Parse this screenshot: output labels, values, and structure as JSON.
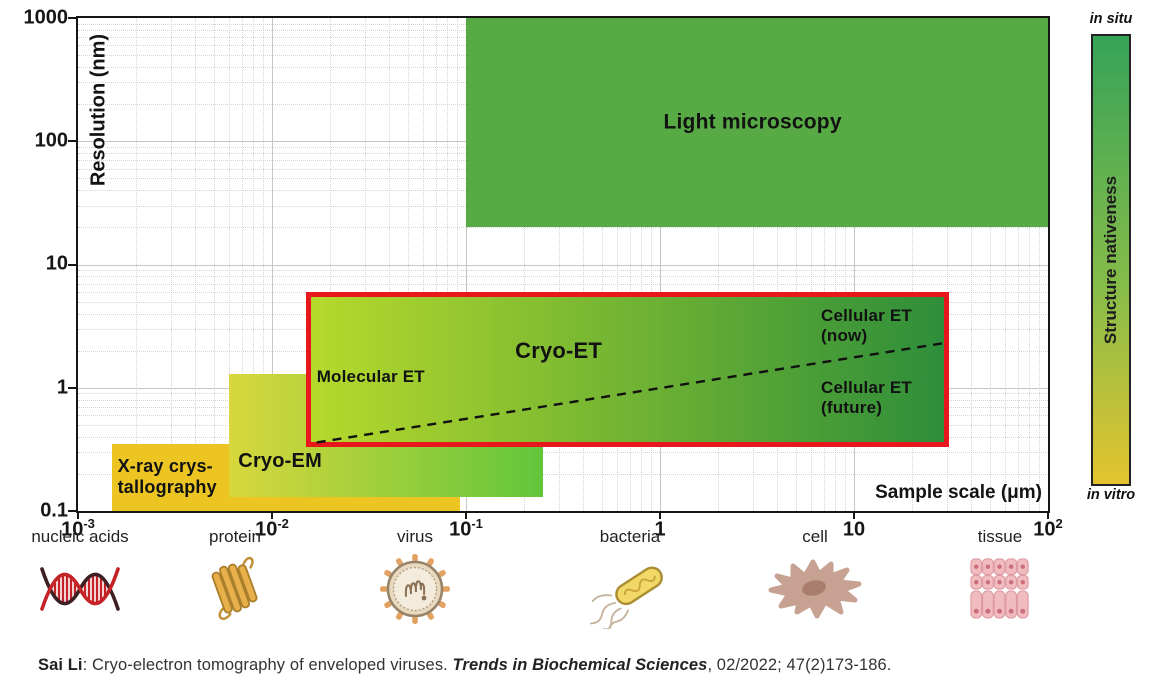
{
  "chart_data": {
    "type": "area",
    "x_scale": "log",
    "y_scale": "log",
    "xlim": [
      0.001,
      100
    ],
    "ylim": [
      0.1,
      1000
    ],
    "xlabel": "Sample scale (μm)",
    "ylabel": "Resolution (nm)",
    "grid": {
      "major": "solid",
      "minor": "dotted",
      "on": true
    },
    "x_ticks": [
      {
        "base": "10",
        "exp": "-3",
        "v": 0.001
      },
      {
        "base": "10",
        "exp": "-2",
        "v": 0.01
      },
      {
        "base": "10",
        "exp": "-1",
        "v": 0.1
      },
      {
        "base": "1",
        "exp": "",
        "v": 1
      },
      {
        "base": "10",
        "exp": "",
        "v": 10
      },
      {
        "base": "10",
        "exp": "2",
        "v": 100
      }
    ],
    "y_ticks": [
      {
        "label": "1000",
        "v": 1000
      },
      {
        "label": "100",
        "v": 100
      },
      {
        "label": "10",
        "v": 10
      },
      {
        "label": "1",
        "v": 1
      },
      {
        "label": "0.1",
        "v": 0.1
      }
    ],
    "regions": [
      {
        "name": "xray-crystallography",
        "x": [
          0.0015,
          0.093
        ],
        "y": [
          0.1,
          0.35
        ],
        "colors": [
          "#ecc523"
        ],
        "labels": [
          {
            "text": "X-ray crys-\ntallography",
            "x": 0.0016,
            "y": 0.19,
            "anchor": "left",
            "size": 18
          }
        ]
      },
      {
        "name": "cryo-em",
        "x": [
          0.006,
          0.25
        ],
        "y": [
          0.13,
          1.3
        ],
        "colors": [
          "#d8d73d",
          "#62c63b"
        ],
        "labels": [
          {
            "text": "Cryo-EM",
            "x": 0.0067,
            "y": 0.25,
            "anchor": "left",
            "size": 20
          }
        ]
      },
      {
        "name": "light-microscopy",
        "x": [
          0.1,
          100
        ],
        "y": [
          20,
          1000
        ],
        "colors": [
          "#58aa45"
        ],
        "labels": [
          {
            "text": "Light microscopy",
            "x": 3,
            "y": 140,
            "anchor": "center",
            "size": 21
          }
        ]
      },
      {
        "name": "cryo-et",
        "x": [
          0.015,
          31
        ],
        "y": [
          0.33,
          6
        ],
        "colors": [
          "#b6d92c",
          "#2e8e3a"
        ],
        "border_color": "#e8161d",
        "labels": [
          {
            "text": "Cryo-ET",
            "x": 0.3,
            "y": 2,
            "anchor": "center",
            "size": 22
          },
          {
            "text": "Molecular ET",
            "x": 0.017,
            "y": 1.22,
            "anchor": "left",
            "size": 17
          },
          {
            "text": "Cellular ET (now)",
            "x": 26,
            "y": 3.2,
            "anchor": "right",
            "size": 17
          },
          {
            "text": "Cellular ET (future)",
            "x": 26,
            "y": 0.82,
            "anchor": "right",
            "size": 17
          }
        ]
      }
    ],
    "dashed_line": {
      "x1": 0.017,
      "y1": 0.36,
      "x2": 29,
      "y2": 2.3
    }
  },
  "colorbar": {
    "title": "Structure nativeness",
    "top_label": "in situ",
    "bottom_label": "in vitro",
    "colors": [
      "#36a357",
      "#85bc4a",
      "#e4c32e"
    ]
  },
  "categories": [
    {
      "label": "nucleic acids",
      "icon": "dna-icon"
    },
    {
      "label": "protein",
      "icon": "protein-icon"
    },
    {
      "label": "virus",
      "icon": "virus-icon"
    },
    {
      "label": "bacteria",
      "icon": "bacteria-icon"
    },
    {
      "label": "cell",
      "icon": "cell-icon"
    },
    {
      "label": "tissue",
      "icon": "tissue-icon"
    }
  ],
  "citation": {
    "author": "Sai Li",
    "text1": ": Cryo-electron tomography of enveloped viruses. ",
    "journal": "Trends in Biochemical Sciences",
    "text2": ", 02/2022; 47(2)173-186."
  },
  "colors": {
    "background": "#ffffff",
    "axis": "#161616",
    "grid_major": "#c6c6c6",
    "grid_minor": "#d4d4d4",
    "dashed_line": "#111111",
    "red_border": "#e8161d"
  }
}
